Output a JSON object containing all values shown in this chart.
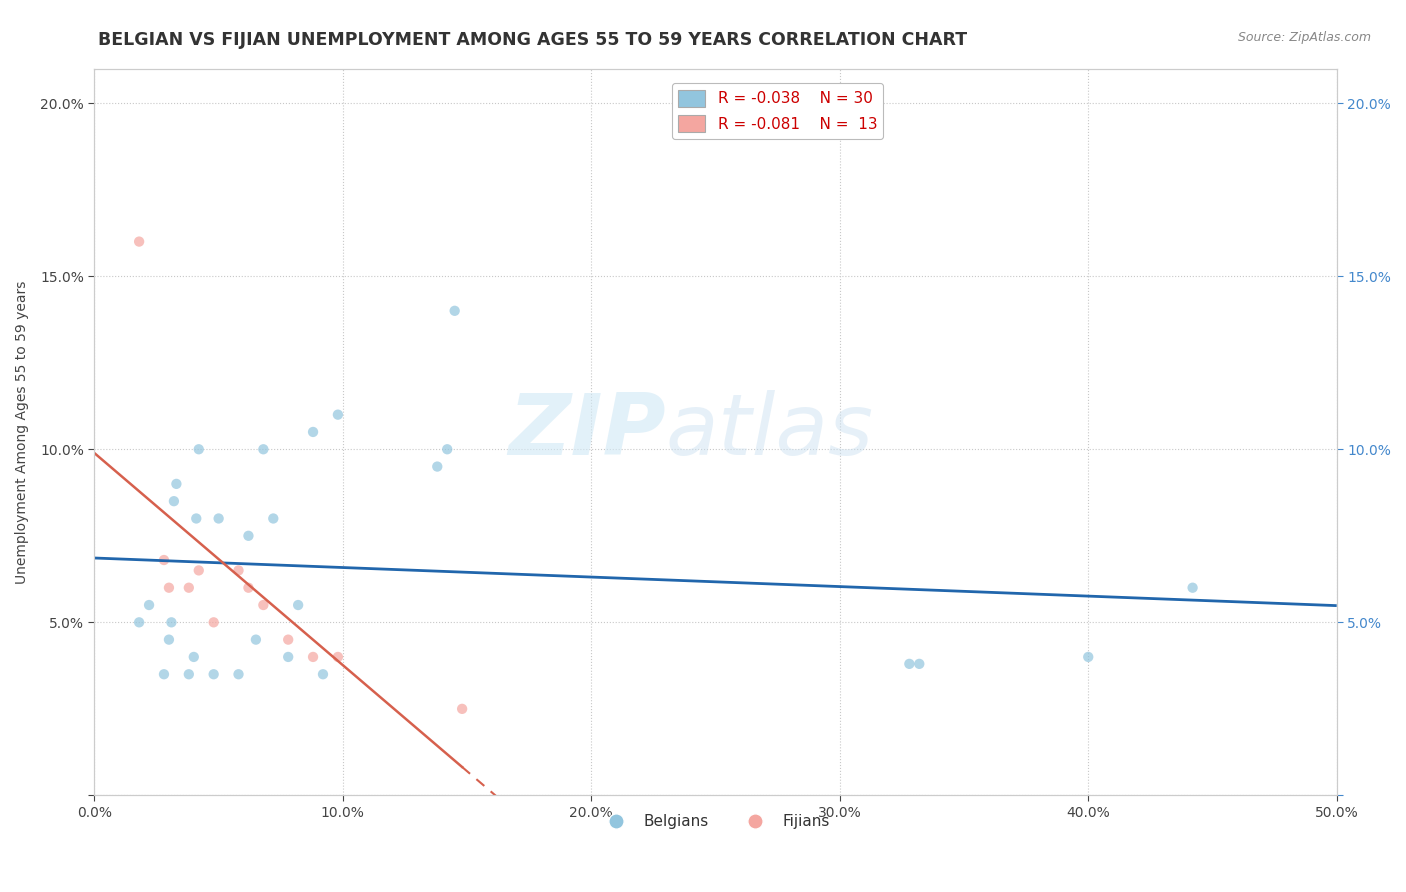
{
  "title": "BELGIAN VS FIJIAN UNEMPLOYMENT AMONG AGES 55 TO 59 YEARS CORRELATION CHART",
  "source": "Source: ZipAtlas.com",
  "ylabel": "Unemployment Among Ages 55 to 59 years",
  "xlim": [
    0.0,
    0.5
  ],
  "ylim": [
    0.0,
    0.21
  ],
  "xticks": [
    0.0,
    0.1,
    0.2,
    0.3,
    0.4,
    0.5
  ],
  "yticks": [
    0.0,
    0.05,
    0.1,
    0.15,
    0.2
  ],
  "belgian_x": [
    0.018,
    0.022,
    0.028,
    0.03,
    0.031,
    0.032,
    0.033,
    0.038,
    0.04,
    0.041,
    0.042,
    0.048,
    0.05,
    0.058,
    0.062,
    0.065,
    0.068,
    0.072,
    0.078,
    0.082,
    0.088,
    0.092,
    0.098,
    0.138,
    0.142,
    0.145,
    0.328,
    0.332,
    0.4,
    0.442
  ],
  "belgian_y": [
    0.05,
    0.055,
    0.035,
    0.045,
    0.05,
    0.085,
    0.09,
    0.035,
    0.04,
    0.08,
    0.1,
    0.035,
    0.08,
    0.035,
    0.075,
    0.045,
    0.1,
    0.08,
    0.04,
    0.055,
    0.105,
    0.035,
    0.11,
    0.095,
    0.1,
    0.14,
    0.038,
    0.038,
    0.04,
    0.06
  ],
  "fijian_x": [
    0.018,
    0.028,
    0.03,
    0.038,
    0.042,
    0.048,
    0.058,
    0.062,
    0.068,
    0.078,
    0.088,
    0.098,
    0.148
  ],
  "fijian_y": [
    0.16,
    0.068,
    0.06,
    0.06,
    0.065,
    0.05,
    0.065,
    0.06,
    0.055,
    0.045,
    0.04,
    0.04,
    0.025
  ],
  "belgian_color": "#92c5de",
  "fijian_color": "#f4a6a0",
  "belgian_line_color": "#2166ac",
  "fijian_line_color": "#d6604d",
  "legend_r_belgian": "R = -0.038",
  "legend_n_belgian": "N = 30",
  "legend_r_fijian": "R = -0.081",
  "legend_n_fijian": "N =  13",
  "watermark_zip": "ZIP",
  "watermark_atlas": "atlas",
  "background_color": "#ffffff",
  "grid_color": "#c8c8c8",
  "title_color": "#333333",
  "title_fontsize": 12.5,
  "axis_fontsize": 10,
  "tick_fontsize": 10,
  "right_tick_color": "#4488cc",
  "scatter_size": 55,
  "scatter_alpha": 0.7
}
